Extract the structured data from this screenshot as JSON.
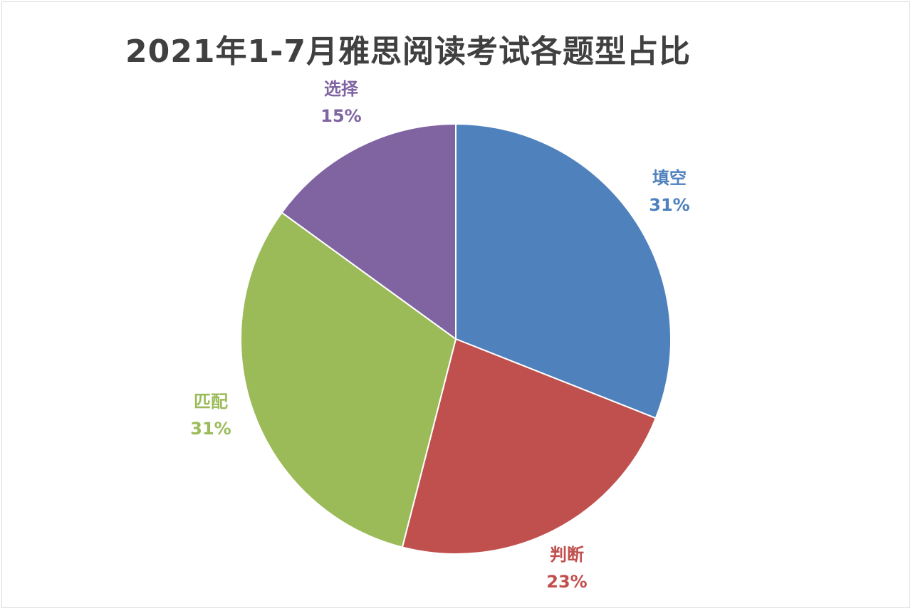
{
  "chart_data": {
    "type": "pie",
    "title": "2021年1-7月雅思阅读考试各题型占比",
    "start_angle_deg": 0,
    "direction": "clockwise",
    "slices": [
      {
        "label": "填空",
        "value": 31,
        "display": "31%",
        "color": "#4F81BD",
        "label_color": "#4F81BD"
      },
      {
        "label": "判断",
        "value": 23,
        "display": "23%",
        "color": "#C0504D",
        "label_color": "#C0504D"
      },
      {
        "label": "匹配",
        "value": 31,
        "display": "31%",
        "color": "#9BBB59",
        "label_color": "#9BBB59"
      },
      {
        "label": "选择",
        "value": 15,
        "display": "15%",
        "color": "#8064A2",
        "label_color": "#8064A2"
      }
    ],
    "legend": "none",
    "data_labels": "outside"
  }
}
